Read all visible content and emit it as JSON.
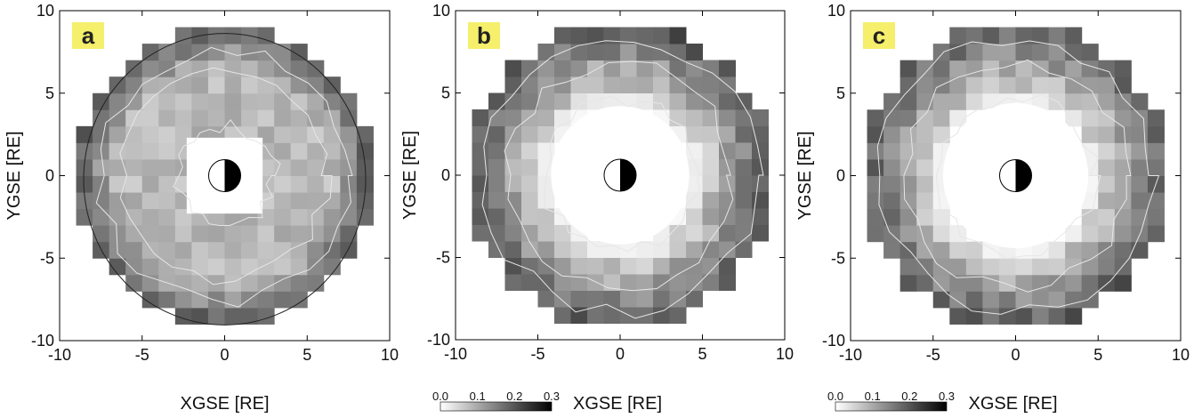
{
  "chart_data": [
    {
      "panel_label": "a",
      "type": "heatmap",
      "xlabel": "XGSE [RE]",
      "ylabel": "YGSE [RE]",
      "xlim": [
        -10,
        10
      ],
      "ylim": [
        -10,
        10
      ],
      "x_ticks": [
        "-10",
        "-5",
        "0",
        "5",
        "10"
      ],
      "y_ticks": [
        "10",
        "5",
        "0",
        "-5",
        "-10"
      ],
      "cell_size_re": 1,
      "outer_radius_re": 9,
      "inner_hole": "square",
      "inner_half_width_re": 2.3,
      "outer_boundary_radius_re": 9.6,
      "colorbar": null
    },
    {
      "panel_label": "b",
      "type": "heatmap",
      "xlabel": "XGSE [RE]",
      "ylabel": "YGSE [RE]",
      "xlim": [
        -10,
        10
      ],
      "ylim": [
        -10,
        10
      ],
      "x_ticks": [
        "-10",
        "-5",
        "0",
        "5",
        "10"
      ],
      "y_ticks": [
        "10",
        "5",
        "0",
        "-5",
        "-10"
      ],
      "cell_size_re": 1,
      "outer_radius_re": 9.3,
      "inner_hole": "circle",
      "inner_radius_re": 4.2,
      "colorbar": {
        "ticks": [
          "0.0",
          "0.1",
          "0.2",
          "0.3"
        ],
        "range": [
          0,
          0.3
        ]
      }
    },
    {
      "panel_label": "c",
      "type": "heatmap",
      "xlabel": "XGSE [RE]",
      "ylabel": "YGSE [RE]",
      "xlim": [
        -10,
        10
      ],
      "ylim": [
        -10,
        10
      ],
      "x_ticks": [
        "-10",
        "-5",
        "0",
        "5",
        "10"
      ],
      "y_ticks": [
        "10",
        "5",
        "0",
        "-5",
        "-10"
      ],
      "cell_size_re": 1,
      "outer_radius_re": 9.3,
      "inner_hole": "circle",
      "inner_radius_re": 4.4,
      "colorbar": {
        "ticks": [
          "0.0",
          "0.1",
          "0.2",
          "0.3"
        ],
        "range": [
          0,
          0.3
        ]
      }
    }
  ],
  "colors": {
    "label_box": "#f5ef6b",
    "frame": "#000000",
    "contour": "#e6e6e6",
    "boundary": "#222222"
  },
  "earth_icon": "earth-day-night-icon"
}
